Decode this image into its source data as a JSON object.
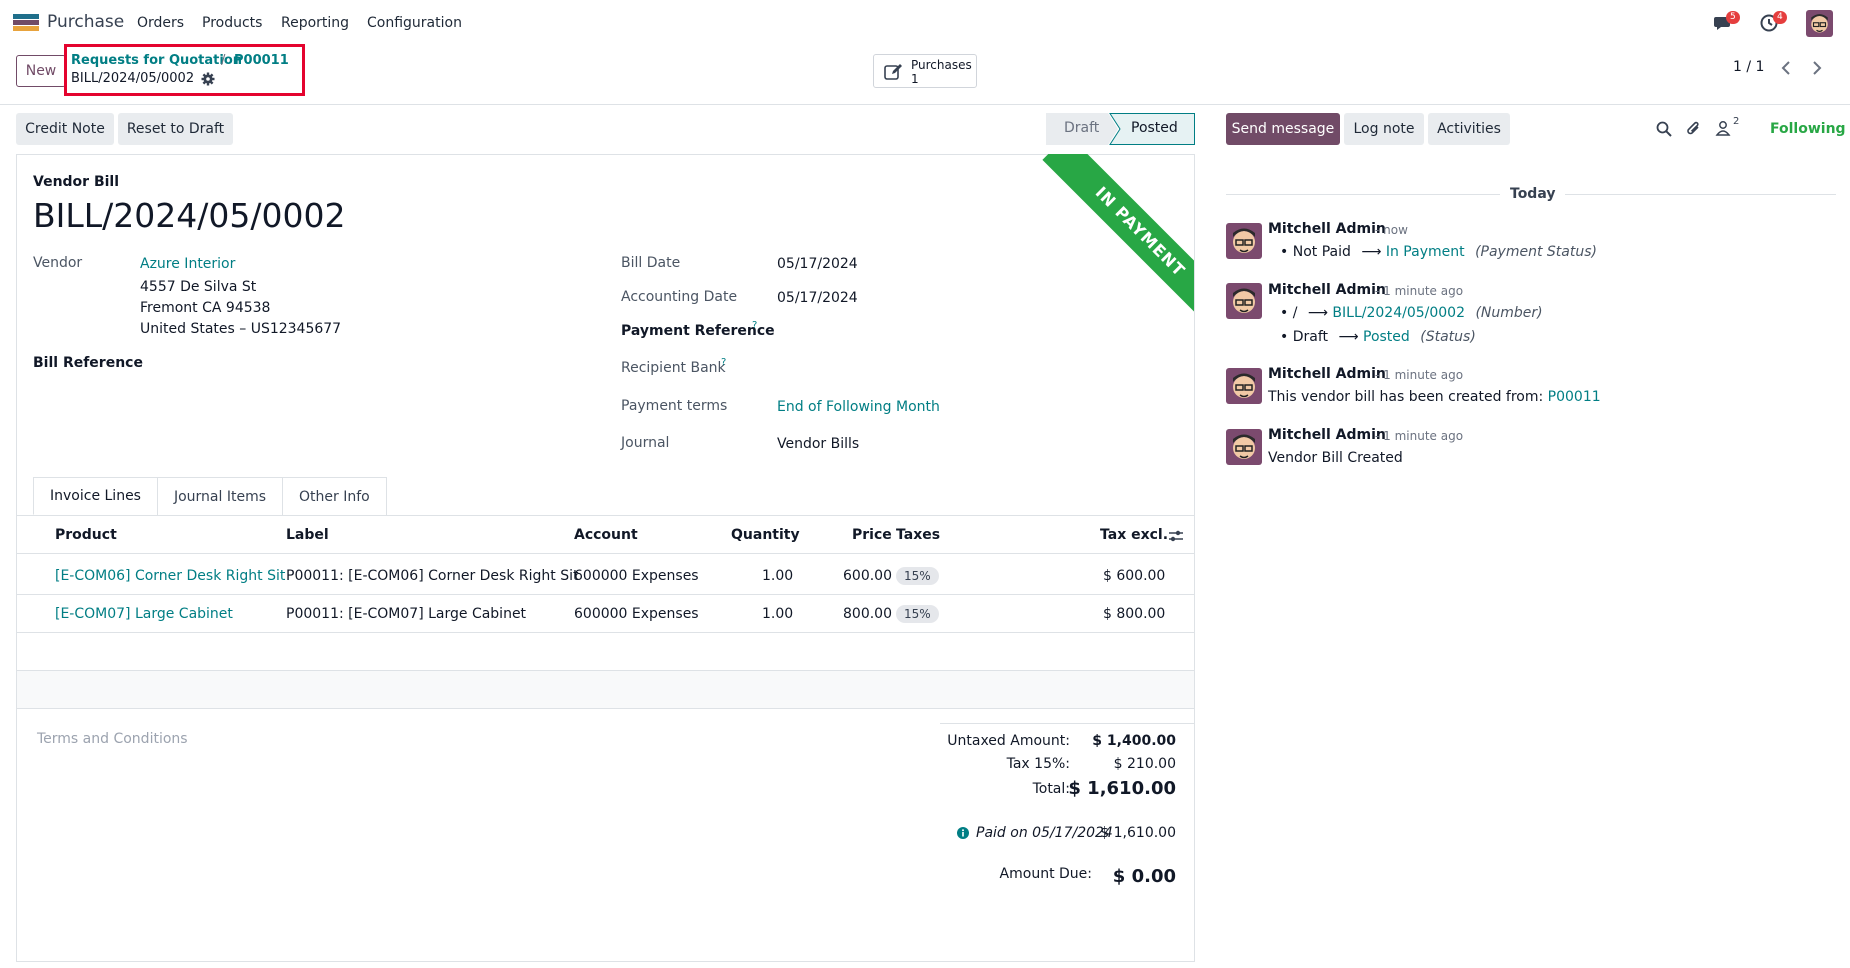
{
  "navbar": {
    "app_name": "Purchase",
    "menu": [
      "Orders",
      "Products",
      "Reporting",
      "Configuration"
    ],
    "messages_count": "5",
    "activities_count": "4"
  },
  "control_panel": {
    "new_label": "New",
    "breadcrumb": {
      "parent": "Requests for Quotation",
      "separator": "/",
      "order": "P00011",
      "current": "BILL/2024/05/0002"
    },
    "smart_button": {
      "label": "Purchases",
      "count": "1"
    },
    "pager": "1 / 1"
  },
  "actions": {
    "credit_note": "Credit Note",
    "reset_to_draft": "Reset to Draft",
    "status_draft": "Draft",
    "status_posted": "Posted"
  },
  "chatter_bar": {
    "send_message": "Send message",
    "log_note": "Log note",
    "activities": "Activities",
    "followers_count": "2",
    "following": "Following"
  },
  "form": {
    "ribbon": "IN PAYMENT",
    "type_label": "Vendor Bill",
    "name": "BILL/2024/05/0002",
    "vendor_label": "Vendor",
    "vendor_name": "Azure Interior",
    "vendor_address": [
      "4557 De Silva St",
      "Fremont CA 94538",
      "United States – US12345677"
    ],
    "bill_reference_label": "Bill Reference",
    "bill_date_label": "Bill Date",
    "bill_date": "05/17/2024",
    "accounting_date_label": "Accounting Date",
    "accounting_date": "05/17/2024",
    "payment_reference_label": "Payment Reference",
    "recipient_bank_label": "Recipient Bank",
    "payment_terms_label": "Payment terms",
    "payment_terms": "End of Following Month",
    "journal_label": "Journal",
    "journal": "Vendor Bills",
    "help_mark": "?"
  },
  "tabs": [
    "Invoice Lines",
    "Journal Items",
    "Other Info"
  ],
  "table": {
    "headers": {
      "product": "Product",
      "label": "Label",
      "account": "Account",
      "quantity": "Quantity",
      "price": "Price",
      "taxes": "Taxes",
      "tax_excl": "Tax excl."
    },
    "rows": [
      {
        "product": "[E-COM06] Corner Desk Right Sit",
        "label": "P00011: [E-COM06] Corner Desk Right Sit",
        "account": "600000 Expenses",
        "quantity": "1.00",
        "price": "600.00",
        "tax": "15%",
        "subtotal": "$ 600.00"
      },
      {
        "product": "[E-COM07] Large Cabinet",
        "label": "P00011: [E-COM07] Large Cabinet",
        "account": "600000 Expenses",
        "quantity": "1.00",
        "price": "800.00",
        "tax": "15%",
        "subtotal": "$ 800.00"
      }
    ]
  },
  "footer": {
    "terms_placeholder": "Terms and Conditions",
    "untaxed_label": "Untaxed Amount:",
    "untaxed_value": "$ 1,400.00",
    "tax_label": "Tax 15%:",
    "tax_value": "$ 210.00",
    "total_label": "Total:",
    "total_value": "$ 1,610.00",
    "paid_label": "Paid on 05/17/2024",
    "paid_value": "$ 1,610.00",
    "amount_due_label": "Amount Due:",
    "amount_due_value": "$ 0.00"
  },
  "chatter": {
    "today": "Today",
    "messages": [
      {
        "author": "Mitchell Admin",
        "time": "- now"
      },
      {
        "author": "Mitchell Admin",
        "time": "- 1 minute ago"
      },
      {
        "author": "Mitchell Admin",
        "time": "- 1 minute ago"
      },
      {
        "author": "Mitchell Admin",
        "time": "- 1 minute ago"
      }
    ],
    "m1": {
      "old": "Not Paid",
      "new": "In Payment",
      "field": "(Payment Status)"
    },
    "m2": {
      "old1": "/",
      "new1": "BILL/2024/05/0002",
      "field1": "(Number)",
      "old2": "Draft",
      "new2": "Posted",
      "field2": "(Status)"
    },
    "m3": {
      "text": "This vendor bill has been created from:",
      "link": "P00011"
    },
    "m4": {
      "text": "Vendor Bill Created"
    },
    "arrow": "⟶"
  },
  "colors": {
    "brand": "#714b67",
    "link": "#017e84",
    "ribbon": "#28a745",
    "highlight": "#e4032e"
  }
}
